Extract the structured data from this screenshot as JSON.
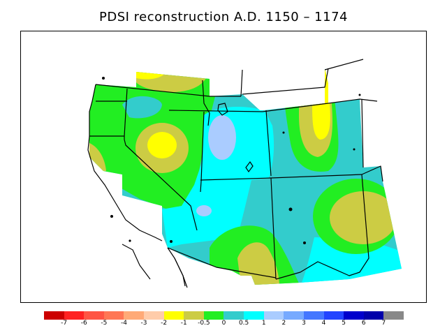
{
  "title": "PDSI reconstruction A.D. 1150 – 1174",
  "legend": {
    "colors": [
      "#cc0000",
      "#ff2222",
      "#ff5544",
      "#ff7755",
      "#ffaa77",
      "#ffccaa",
      "#ffff00",
      "#cccc44",
      "#22ee22",
      "#33cccc",
      "#00ffff",
      "#aaccff",
      "#77aaff",
      "#4477ff",
      "#2244ff",
      "#0000cc",
      "#0000aa",
      "#888888"
    ],
    "tick_labels": [
      "-7",
      "-6",
      "-5",
      "-4",
      "-3",
      "-2",
      "-1",
      "-0.5",
      "0",
      "0.5",
      "1",
      "2",
      "3",
      "4",
      "5",
      "6",
      "7"
    ]
  },
  "palette": {
    "yellow": "#ffff00",
    "olive": "#cccc44",
    "green": "#22ee22",
    "teal": "#33cccc",
    "cyan": "#00ffff",
    "lightblue": "#aaccff"
  }
}
